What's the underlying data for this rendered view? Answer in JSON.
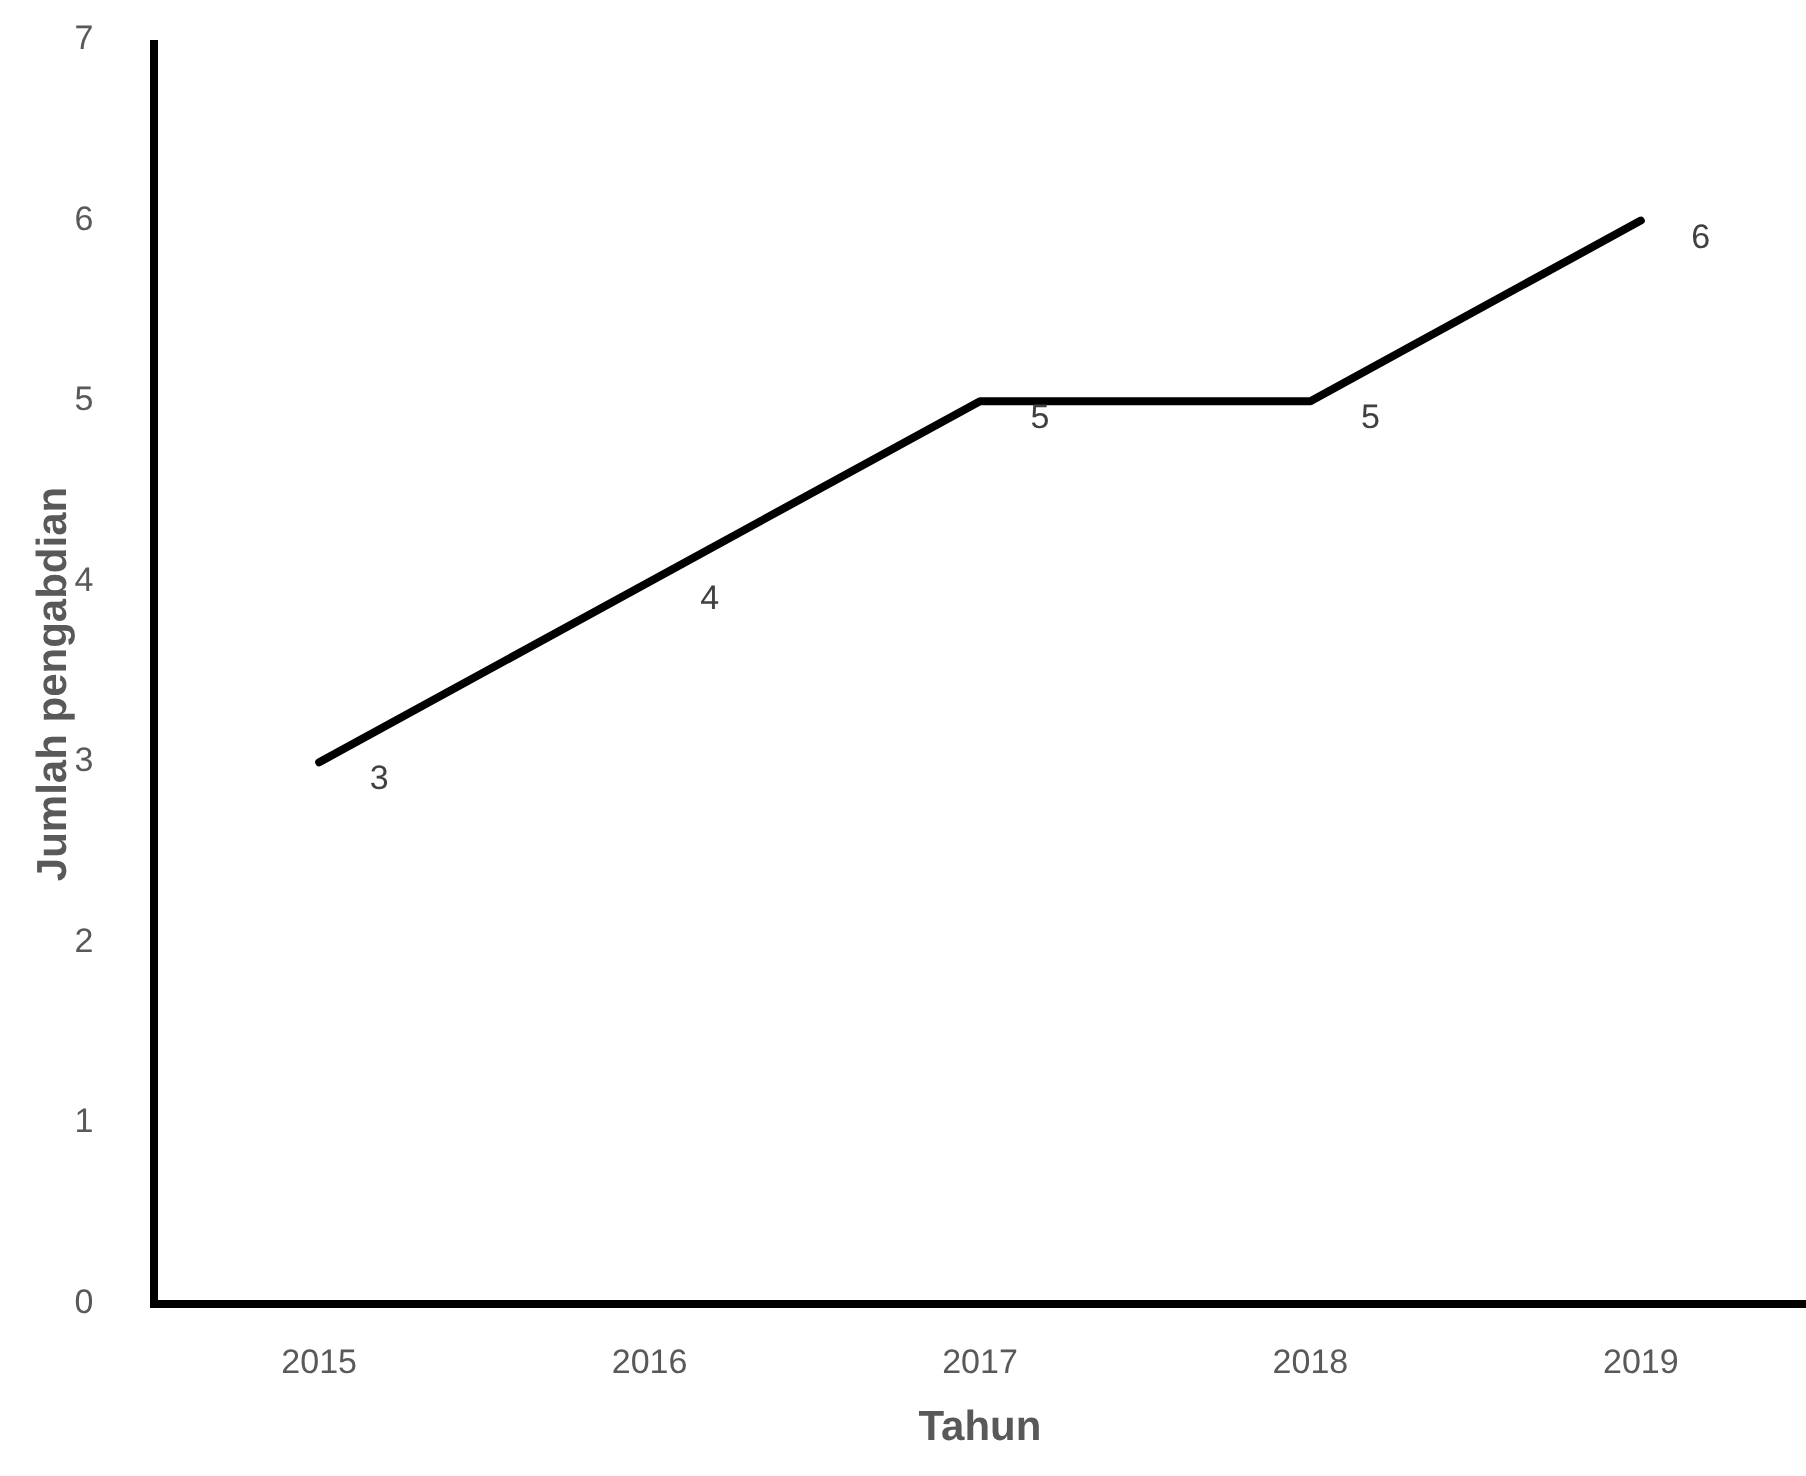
{
  "chart_data": {
    "type": "line",
    "xlabel": "Tahun",
    "ylabel": "Jumlah pengabdian",
    "categories": [
      "2015",
      "2016",
      "2017",
      "2018",
      "2019"
    ],
    "series": [
      {
        "color": "#000000",
        "values": [
          3,
          4,
          5,
          5,
          6
        ]
      }
    ],
    "ylim": [
      0,
      7
    ],
    "yticks": [
      0,
      1,
      2,
      3,
      4,
      5,
      6,
      7
    ],
    "grid": false,
    "marker": "none",
    "line_style": "solid",
    "data_labels": true
  }
}
